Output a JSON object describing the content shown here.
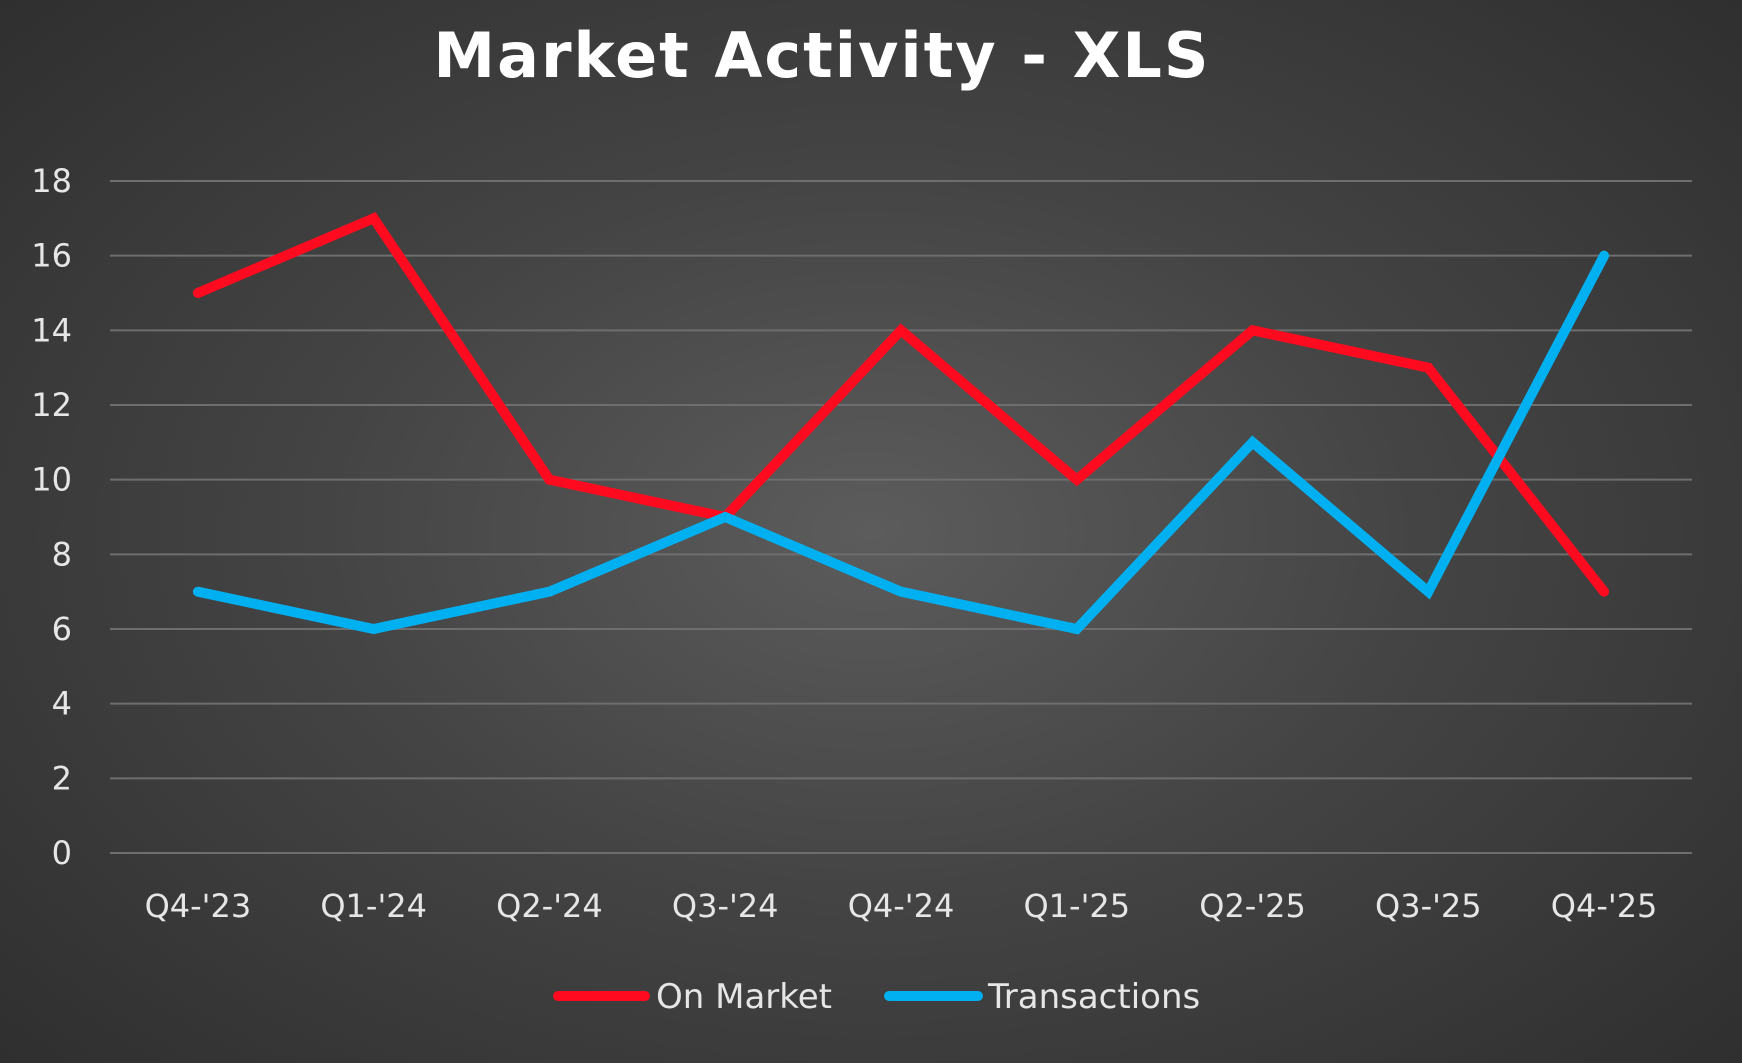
{
  "chart_data": {
    "type": "line",
    "title": "Market Activity - XLS",
    "xlabel": "",
    "ylabel": "",
    "categories": [
      "Q4-'23",
      "Q1-'24",
      "Q2-'24",
      "Q3-'24",
      "Q4-'24",
      "Q1-'25",
      "Q2-'25",
      "Q3-'25",
      "Q4-'25"
    ],
    "ylim": [
      0,
      18
    ],
    "yticks": [
      0,
      2,
      4,
      6,
      8,
      10,
      12,
      14,
      16,
      18
    ],
    "grid": true,
    "legend_position": "bottom",
    "series": [
      {
        "name": "On Market",
        "color": "#ff0a1e",
        "values": [
          15,
          17,
          10,
          9,
          14,
          10,
          14,
          13,
          7
        ]
      },
      {
        "name": "Transactions",
        "color": "#00b0f0",
        "values": [
          7,
          6,
          7,
          9,
          7,
          6,
          11,
          7,
          16
        ]
      }
    ]
  }
}
